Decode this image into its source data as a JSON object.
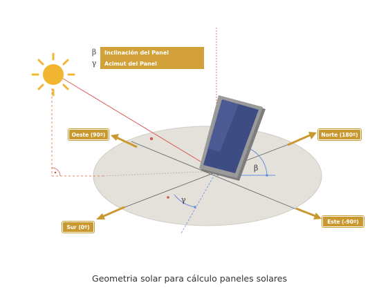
{
  "legend": [
    {
      "symbol": "β",
      "label": "Inclinación del Panel"
    },
    {
      "symbol": "γ",
      "label": "Acimut del Panel"
    }
  ],
  "directions": {
    "oeste": "Oeste (90º)",
    "norte": "Norte (180º)",
    "sur": "Sur (0º)",
    "este": "Este (-90º)"
  },
  "angles": {
    "beta": "β",
    "gamma": "γ"
  },
  "caption": "Geometria solar para cálculo paneles solares",
  "colors": {
    "gold": "#c9982f",
    "legend_bg": "#d3a13a",
    "ground": "#e4e0da",
    "sun": "#f2b632",
    "ray": "#d9534f",
    "panel": "#3e4c84",
    "frame": "#8a8a8a",
    "angle_line": "#6a8fd8"
  }
}
